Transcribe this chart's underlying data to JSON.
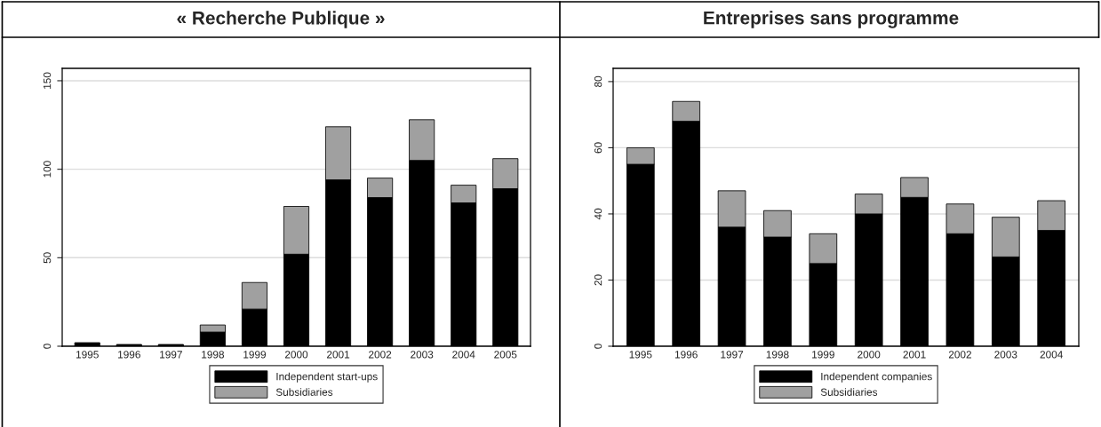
{
  "chart_data": [
    {
      "type": "bar",
      "title": "« Recherche Publique »",
      "stacked": true,
      "categories": [
        "1995",
        "1996",
        "1997",
        "1998",
        "1999",
        "2000",
        "2001",
        "2002",
        "2003",
        "2004",
        "2005"
      ],
      "series": [
        {
          "name": "Independent start-ups",
          "color": "#000000",
          "values": [
            2,
            1,
            1,
            8,
            21,
            52,
            94,
            84,
            105,
            81,
            89
          ]
        },
        {
          "name": "Subsidiaries",
          "color": "#a0a0a0",
          "values": [
            null,
            null,
            null,
            4,
            15,
            27,
            30,
            11,
            23,
            10,
            17
          ]
        }
      ],
      "ylim": [
        0,
        157
      ],
      "yticks": [
        0,
        50,
        100,
        150
      ],
      "grid": "y",
      "legend": "bottom"
    },
    {
      "type": "bar",
      "title": "Entreprises sans programme",
      "stacked": true,
      "categories": [
        "1995",
        "1996",
        "1997",
        "1998",
        "1999",
        "2000",
        "2001",
        "2002",
        "2003",
        "2004"
      ],
      "series": [
        {
          "name": "Independent companies",
          "color": "#000000",
          "values": [
            55,
            68,
            36,
            33,
            25,
            40,
            45,
            34,
            27,
            35
          ]
        },
        {
          "name": "Subsidiaries",
          "color": "#a0a0a0",
          "values": [
            5,
            6,
            11,
            8,
            9,
            6,
            6,
            9,
            12,
            9
          ]
        }
      ],
      "ylim": [
        0,
        84
      ],
      "yticks": [
        0,
        20,
        40,
        60,
        80
      ],
      "grid": "y",
      "legend": "bottom"
    }
  ]
}
